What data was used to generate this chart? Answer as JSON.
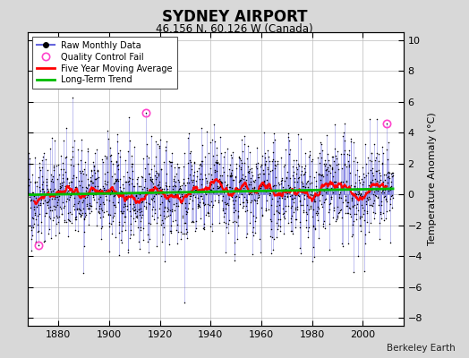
{
  "title": "SYDNEY AIRPORT",
  "subtitle": "46.156 N, 60.126 W (Canada)",
  "ylabel": "Temperature Anomaly (°C)",
  "credit": "Berkeley Earth",
  "xlim": [
    1868,
    2016
  ],
  "ylim": [
    -8.5,
    10.5
  ],
  "yticks": [
    -8,
    -6,
    -4,
    -2,
    0,
    2,
    4,
    6,
    8,
    10
  ],
  "xticks": [
    1880,
    1900,
    1920,
    1940,
    1960,
    1980,
    2000
  ],
  "bg_color": "#d8d8d8",
  "plot_bg_color": "#ffffff",
  "raw_line_color": "#6666dd",
  "raw_dot_color": "#000000",
  "ma_color": "#ff0000",
  "trend_color": "#00bb00",
  "qc_color": "#ff44cc",
  "seed": 42,
  "start_year": 1868,
  "end_year": 2012,
  "qc_fail_points": [
    [
      1914.5,
      5.3
    ],
    [
      2009.5,
      4.6
    ]
  ],
  "qc_fail_point_low": [
    1872.0,
    -3.3
  ]
}
